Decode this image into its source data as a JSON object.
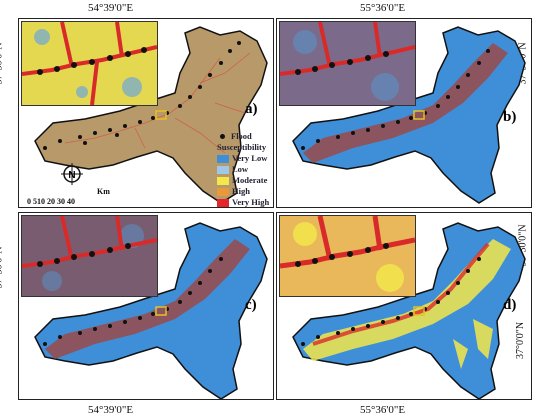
{
  "coords": {
    "top_left": "54°39'0\"E",
    "top_right": "55°36'0\"E",
    "bottom_left": "54°39'0\"E",
    "bottom_right": "55°36'0\"E",
    "lat_upper": "37°30'0\"N",
    "lat_lower": "37°0'0\"N"
  },
  "panels": {
    "a": {
      "label": "a)"
    },
    "b": {
      "label": "b)"
    },
    "c": {
      "label": "c)"
    },
    "d": {
      "label": "d)"
    }
  },
  "legend": {
    "flood": "Flood",
    "title": "Susceptibility",
    "classes": [
      {
        "label": "Very Low",
        "color": "#3f8fd8"
      },
      {
        "label": "Low",
        "color": "#9fc8e8"
      },
      {
        "label": "Moderate",
        "color": "#f2e84a"
      },
      {
        "label": "High",
        "color": "#e89a3a"
      },
      {
        "label": "Very High",
        "color": "#e4262a"
      }
    ]
  },
  "scale": {
    "unit": "Km",
    "ticks": "0 510 20 30 40"
  },
  "north": {
    "letter": "N"
  },
  "colors": {
    "very_low": "#3f8fd8",
    "moderate": "#f2e84a",
    "high_map": "#b89a6a",
    "very_high": "#d92a2a",
    "flood": "#111111"
  }
}
